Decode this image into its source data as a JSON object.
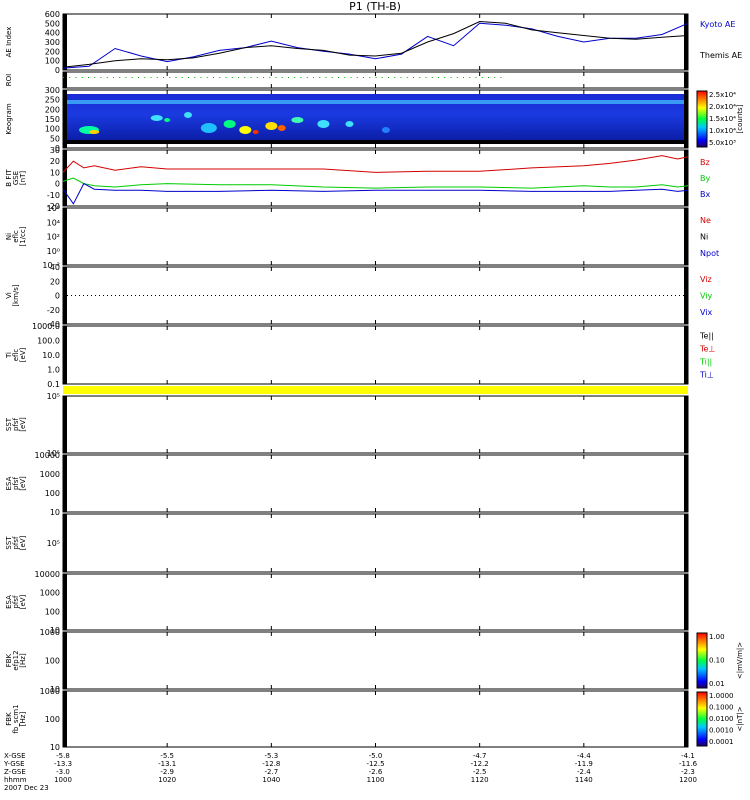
{
  "page_title": "P1 (TH-B)",
  "footer": {
    "row_labels": [
      "X-GSE",
      "Y-GSE",
      "Z-GSE",
      "hhmm",
      "2007 Dec 23"
    ],
    "ticks": [
      {
        "time": "1000",
        "x": "-5.8",
        "y": "-13.3",
        "z": "-3.0"
      },
      {
        "time": "1020",
        "x": "-5.5",
        "y": "-13.1",
        "z": "-2.9"
      },
      {
        "time": "1040",
        "x": "-5.3",
        "y": "-12.8",
        "z": "-2.7"
      },
      {
        "time": "1100",
        "x": "-5.0",
        "y": "-12.5",
        "z": "-2.6"
      },
      {
        "time": "1120",
        "x": "-4.7",
        "y": "-12.2",
        "z": "-2.5"
      },
      {
        "time": "1140",
        "x": "-4.4",
        "y": "-11.9",
        "z": "-2.4"
      },
      {
        "time": "1200",
        "x": "-4.1",
        "y": "-11.6",
        "z": "-2.3"
      }
    ]
  },
  "colors": {
    "red": "#d40000",
    "green": "#00cc00",
    "blue": "#0000cc",
    "black": "#000000",
    "yellow": "#ffff00",
    "roi": "#00aa00"
  },
  "chart_data": [
    {
      "panel": "ae",
      "type": "line",
      "ylabel": "AE Index",
      "ylim": [
        0,
        600
      ],
      "yticks": [
        "0",
        "100",
        "200",
        "300",
        "400",
        "500",
        "600"
      ],
      "legend": [
        {
          "label": "Kyoto AE",
          "color": "#0000cc"
        },
        {
          "label": "Themis AE",
          "color": "#000000"
        }
      ],
      "x": [
        0,
        5,
        10,
        15,
        20,
        25,
        30,
        35,
        40,
        45,
        50,
        55,
        60,
        65,
        70,
        75,
        80,
        85,
        90,
        95,
        100,
        105,
        110,
        115,
        120
      ],
      "series": [
        {
          "name": "Kyoto AE",
          "color": "#0000cc",
          "values": [
            20,
            40,
            230,
            150,
            90,
            140,
            210,
            240,
            310,
            240,
            200,
            170,
            120,
            170,
            360,
            260,
            500,
            480,
            440,
            360,
            300,
            340,
            340,
            380,
            500
          ]
        },
        {
          "name": "Themis AE",
          "color": "#000000",
          "values": [
            30,
            60,
            100,
            120,
            110,
            130,
            180,
            240,
            260,
            230,
            210,
            160,
            150,
            180,
            300,
            390,
            520,
            500,
            430,
            400,
            370,
            340,
            330,
            350,
            370
          ]
        }
      ]
    },
    {
      "panel": "roi",
      "type": "scatter",
      "ylabel": "ROI",
      "ylim": [
        0,
        1
      ],
      "roi_range": [
        0,
        85
      ]
    },
    {
      "panel": "keogram",
      "type": "heatmap",
      "ylabel": "Keogram",
      "ylim": [
        0,
        300
      ],
      "yticks": [
        "0",
        "50",
        "100",
        "150",
        "200",
        "250",
        "300"
      ],
      "colorbar": {
        "label": "[counts]",
        "ticks": [
          "2.5x10⁴",
          "2.0x10⁴",
          "1.5x10⁴",
          "1.0x10⁴",
          "5.0x10³"
        ]
      }
    },
    {
      "panel": "bfgm",
      "type": "line",
      "ylabel": [
        "B FIT",
        "GSE",
        "[nT]"
      ],
      "ylim": [
        -20,
        30
      ],
      "yticks": [
        "-20",
        "-10",
        "0",
        "10",
        "20",
        "30"
      ],
      "legend": [
        {
          "label": "Bz",
          "color": "#d40000"
        },
        {
          "label": "By",
          "color": "#00cc00"
        },
        {
          "label": "Bx",
          "color": "#0000cc"
        }
      ],
      "x": [
        0,
        2,
        4,
        6,
        10,
        15,
        20,
        30,
        40,
        50,
        60,
        70,
        80,
        90,
        100,
        105,
        110,
        115,
        118,
        120
      ],
      "series": [
        {
          "name": "Bz",
          "color": "#d40000",
          "values": [
            10,
            20,
            14,
            16,
            12,
            15,
            13,
            13,
            13,
            13,
            10,
            11,
            11,
            14,
            16,
            18,
            21,
            25,
            22,
            24
          ]
        },
        {
          "name": "By",
          "color": "#00cc00",
          "values": [
            2,
            5,
            0,
            -2,
            -3,
            -1,
            0,
            -1,
            -1,
            -3,
            -4,
            -3,
            -3,
            -4,
            -2,
            -3,
            -3,
            -1,
            -3,
            -2
          ]
        },
        {
          "name": "Bx",
          "color": "#0000cc",
          "values": [
            -5,
            -18,
            0,
            -5,
            -6,
            -6,
            -7,
            -7,
            -6,
            -7,
            -6,
            -6,
            -6,
            -7,
            -7,
            -7,
            -6,
            -5,
            -7,
            -6
          ]
        }
      ]
    },
    {
      "panel": "ni",
      "type": "line",
      "ylabel": [
        "Ni",
        "eflc",
        "[1/cc]"
      ],
      "yticks": [
        "10⁶",
        "10⁴",
        "10²",
        "10⁰",
        "10⁻²"
      ],
      "legend": [
        {
          "label": "Ne",
          "color": "#d40000"
        },
        {
          "label": "Ni",
          "color": "#000000"
        },
        {
          "label": "Npot",
          "color": "#0000cc"
        }
      ]
    },
    {
      "panel": "vi",
      "type": "line",
      "ylabel": [
        "Vi",
        "[km/s]"
      ],
      "ylim": [
        -50,
        50
      ],
      "yticks": [
        "40",
        "20",
        "0",
        "-20",
        "-40"
      ],
      "legend": [
        {
          "label": "Viz",
          "color": "#d40000"
        },
        {
          "label": "Viy",
          "color": "#00cc00"
        },
        {
          "label": "Vix",
          "color": "#0000cc"
        }
      ]
    },
    {
      "panel": "ti",
      "type": "line",
      "ylabel": [
        "Ti",
        "eflc",
        "[eV]"
      ],
      "yticks": [
        "1000.0",
        "100.0",
        "10.0",
        "1.0",
        "0.1"
      ],
      "legend": [
        {
          "label": "Te||",
          "color": "#000000"
        },
        {
          "label": "Te⊥",
          "color": "#d40000"
        },
        {
          "label": "Ti||",
          "color": "#00cc00"
        },
        {
          "label": "Ti⊥",
          "color": "#0000cc"
        }
      ]
    },
    {
      "panel": "sst1",
      "type": "heatmap",
      "ylabel": [
        "SST",
        "pfsf",
        "[eV]"
      ],
      "yticks": [
        "10⁵",
        "10⁵"
      ]
    },
    {
      "panel": "esa1",
      "type": "heatmap",
      "ylabel": [
        "ESA",
        "pfsf",
        "[eV]"
      ],
      "yticks": [
        "10000",
        "1000",
        "100",
        "10"
      ]
    },
    {
      "panel": "sst2",
      "type": "heatmap",
      "ylabel": [
        "SST",
        "pfsf",
        "[eV]"
      ],
      "yticks": [
        "10⁵"
      ]
    },
    {
      "panel": "esa2",
      "type": "heatmap",
      "ylabel": [
        "ESA",
        "pfsf",
        "[eV]"
      ],
      "yticks": [
        "10000",
        "1000",
        "100",
        "10"
      ]
    },
    {
      "panel": "fbk1",
      "type": "heatmap",
      "ylabel": [
        "FBK",
        "efp12",
        "[Hz]"
      ],
      "yticks": [
        "1000",
        "100",
        "10"
      ],
      "colorbar": {
        "label": "<|mV/m|>",
        "ticks": [
          "1.00",
          "0.10",
          "0.01"
        ]
      }
    },
    {
      "panel": "fbk2",
      "type": "heatmap",
      "ylabel": [
        "FBK",
        "fb_scm1",
        "[Hz]"
      ],
      "yticks": [
        "1000",
        "100",
        "10"
      ],
      "colorbar": {
        "label": "<|nT|>",
        "ticks": [
          "1.0000",
          "0.1000",
          "0.0100",
          "0.0010",
          "0.0001"
        ]
      }
    }
  ]
}
